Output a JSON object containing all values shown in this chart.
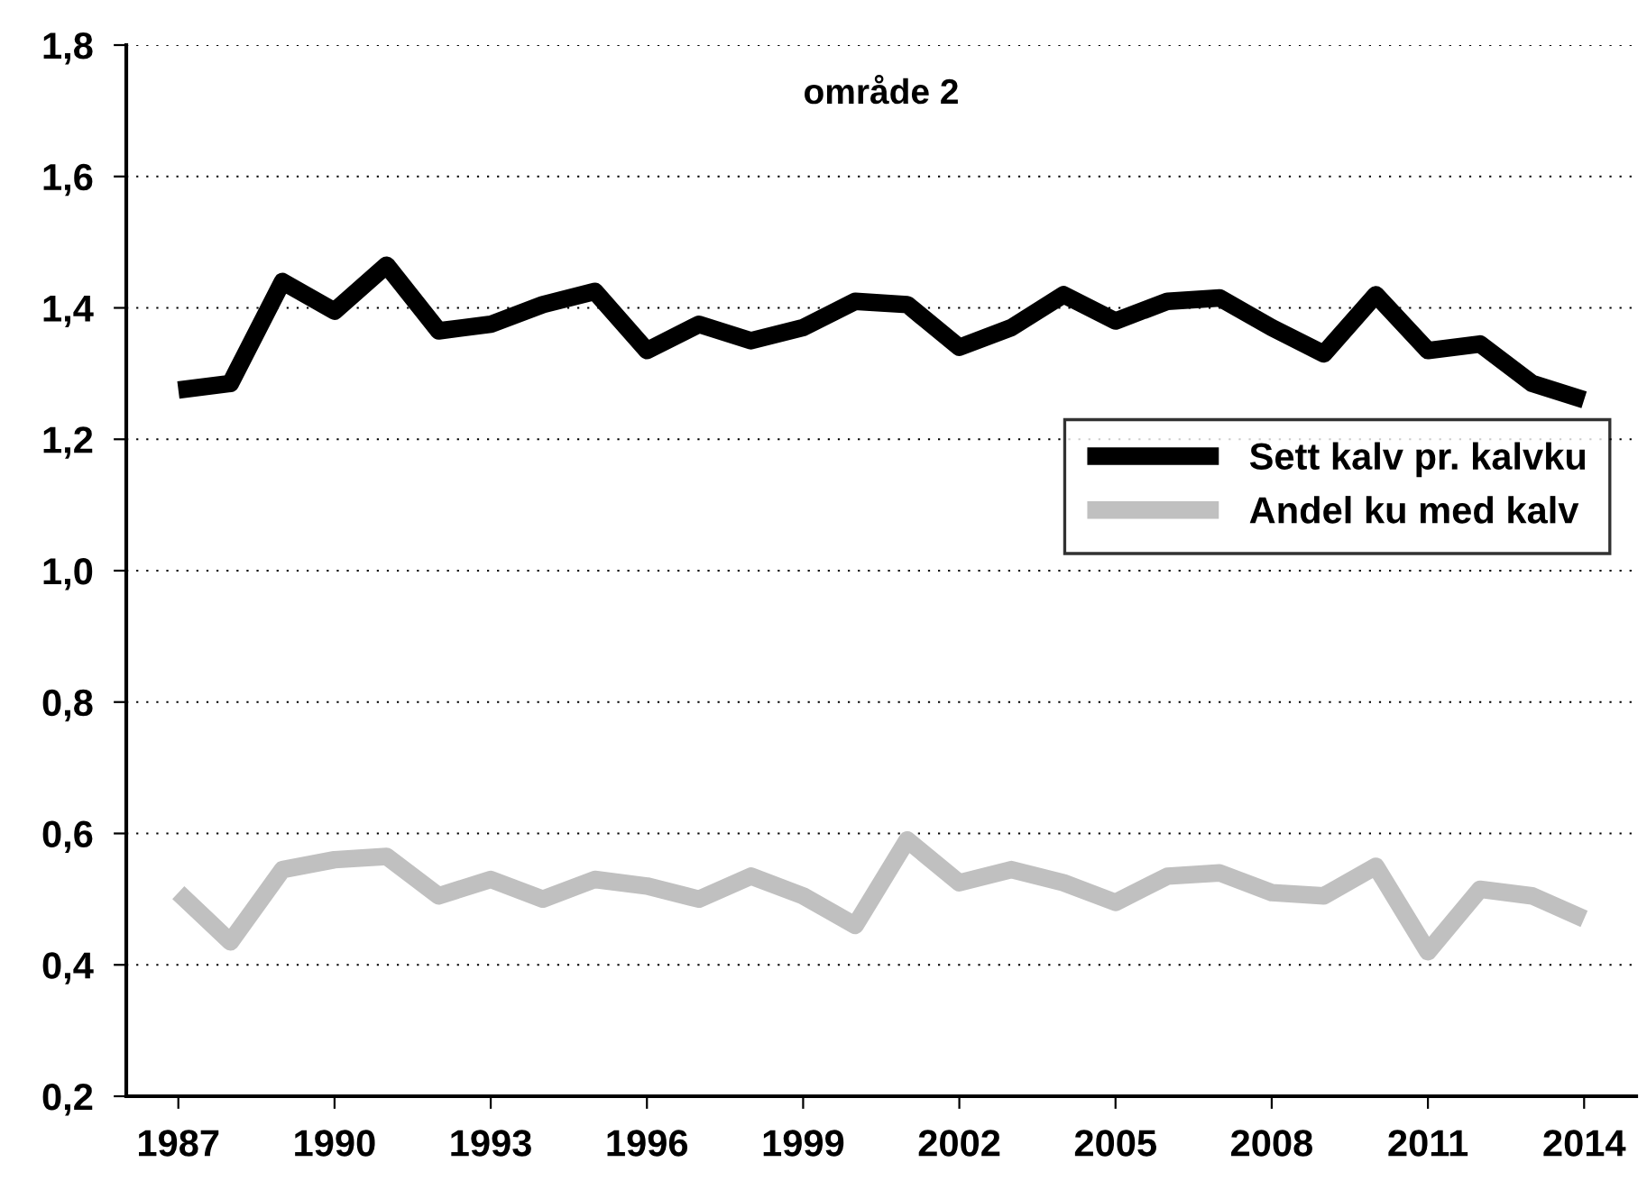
{
  "chart_data": {
    "type": "line",
    "title": "område 2",
    "x": [
      1987,
      1988,
      1989,
      1990,
      1991,
      1992,
      1993,
      1994,
      1995,
      1996,
      1997,
      1998,
      1999,
      2000,
      2001,
      2002,
      2003,
      2004,
      2005,
      2006,
      2007,
      2008,
      2009,
      2010,
      2011,
      2012,
      2013,
      2014
    ],
    "series": [
      {
        "name": "Sett kalv pr. kalvku",
        "color": "#000000",
        "values": [
          1.275,
          1.285,
          1.44,
          1.395,
          1.465,
          1.365,
          1.375,
          1.405,
          1.425,
          1.335,
          1.375,
          1.35,
          1.37,
          1.41,
          1.405,
          1.34,
          1.37,
          1.42,
          1.38,
          1.41,
          1.415,
          1.37,
          1.33,
          1.42,
          1.335,
          1.345,
          1.285,
          1.26
        ]
      },
      {
        "name": "Andel ku med kalv",
        "color": "#c0c0c0",
        "values": [
          0.51,
          0.435,
          0.545,
          0.56,
          0.565,
          0.505,
          0.53,
          0.5,
          0.53,
          0.52,
          0.5,
          0.535,
          0.505,
          0.46,
          0.59,
          0.525,
          0.545,
          0.525,
          0.495,
          0.535,
          0.54,
          0.51,
          0.505,
          0.55,
          0.42,
          0.515,
          0.505,
          0.47
        ]
      }
    ],
    "xlim": [
      1986,
      2015
    ],
    "xticks": [
      1987,
      1990,
      1993,
      1996,
      1999,
      2002,
      2005,
      2008,
      2011,
      2014
    ],
    "ylim": [
      0.2,
      1.8
    ],
    "yticks": [
      {
        "value": 0.2,
        "label": "0,2"
      },
      {
        "value": 0.4,
        "label": "0,4"
      },
      {
        "value": 0.6,
        "label": "0,6"
      },
      {
        "value": 0.8,
        "label": "0,8"
      },
      {
        "value": 1.0,
        "label": "1,0"
      },
      {
        "value": 1.2,
        "label": "1,2"
      },
      {
        "value": 1.4,
        "label": "1,4"
      },
      {
        "value": 1.6,
        "label": "1,6"
      },
      {
        "value": 1.8,
        "label": "1,8"
      }
    ],
    "grid": "y",
    "legend": "right",
    "marker": "none",
    "line_style": "solid"
  }
}
